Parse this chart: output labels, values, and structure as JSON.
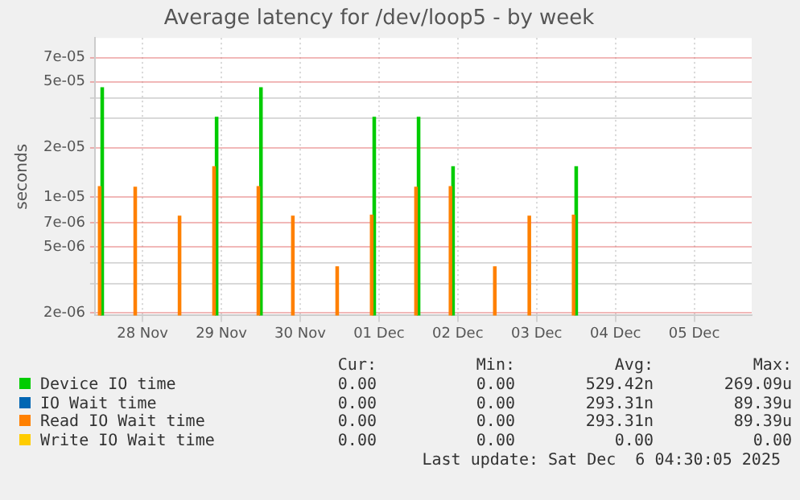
{
  "chart_data": {
    "type": "bar",
    "title": "Average latency for /dev/loop5 - by week",
    "ylabel": "seconds",
    "x": [
      "2025-11-27T23:20",
      "2025-11-28T10:10",
      "2025-11-28T23:40",
      "2025-11-29T10:10",
      "2025-11-29T23:40",
      "2025-11-30T10:10",
      "2025-11-30T23:40",
      "2025-12-01T10:10",
      "2025-12-01T23:40",
      "2025-12-02T10:10",
      "2025-12-02T23:40",
      "2025-12-03T10:10",
      "2025-12-03T23:40"
    ],
    "series": [
      {
        "name": "Device IO time",
        "color": "#00cc00",
        "values": [
          4.6e-05,
          null,
          null,
          3.05e-05,
          4.6e-05,
          null,
          null,
          3.05e-05,
          3.05e-05,
          1.53e-05,
          null,
          null,
          1.53e-05
        ]
      },
      {
        "name": "IO Wait time",
        "color": "#0066b3",
        "values": [
          null,
          null,
          null,
          null,
          null,
          null,
          null,
          null,
          null,
          null,
          null,
          null,
          null
        ]
      },
      {
        "name": "Read IO Wait time",
        "color": "#ff8000",
        "values": [
          1.16e-05,
          1.15e-05,
          7.7e-06,
          1.53e-05,
          1.16e-05,
          7.7e-06,
          3.8e-06,
          7.8e-06,
          1.15e-05,
          1.16e-05,
          3.8e-06,
          7.7e-06,
          7.8e-06
        ]
      },
      {
        "name": "Write IO Wait time",
        "color": "#ffcc00",
        "values": [
          null,
          null,
          null,
          null,
          null,
          null,
          null,
          null,
          null,
          null,
          null,
          null,
          null
        ]
      }
    ],
    "xlim": [
      "2025-11-27T21:30",
      "2025-12-06T05:30"
    ],
    "xticks": [
      {
        "value": "2025-11-28T12:00",
        "label": "28 Nov"
      },
      {
        "value": "2025-11-29T12:00",
        "label": "29 Nov"
      },
      {
        "value": "2025-11-30T12:00",
        "label": "30 Nov"
      },
      {
        "value": "2025-12-01T12:00",
        "label": "01 Dec"
      },
      {
        "value": "2025-12-02T12:00",
        "label": "02 Dec"
      },
      {
        "value": "2025-12-03T12:00",
        "label": "03 Dec"
      },
      {
        "value": "2025-12-04T12:00",
        "label": "04 Dec"
      },
      {
        "value": "2025-12-05T12:00",
        "label": "05 Dec"
      }
    ],
    "log": "y",
    "ylim": [
      1.93e-06,
      9.2e-05
    ],
    "yticks": [
      {
        "value": 2e-06,
        "label": "2e-06"
      },
      {
        "value": 3e-06,
        "label": null
      },
      {
        "value": 4e-06,
        "label": null
      },
      {
        "value": 5e-06,
        "label": "5e-06"
      },
      {
        "value": 7e-06,
        "label": "7e-06"
      },
      {
        "value": 1e-05,
        "label": "1e-05"
      },
      {
        "value": 2e-05,
        "label": "2e-05"
      },
      {
        "value": 3e-05,
        "label": null
      },
      {
        "value": 4e-05,
        "label": null
      },
      {
        "value": 5e-05,
        "label": "5e-05"
      },
      {
        "value": 7e-05,
        "label": "7e-05"
      }
    ],
    "grid": true,
    "legend": "bottom",
    "annotations": [
      "Cur:",
      "Min:",
      "Avg:",
      "Max:",
      "0.00",
      "0.00",
      "529.42n",
      "269.09u",
      "0.00",
      "0.00",
      "293.31n",
      "89.39u",
      "0.00",
      "0.00",
      "293.31n",
      "89.39u",
      "0.00",
      "0.00",
      "0.00",
      "0.00",
      "Last update: Sat Dec  6 04:30:05 2025"
    ]
  }
}
